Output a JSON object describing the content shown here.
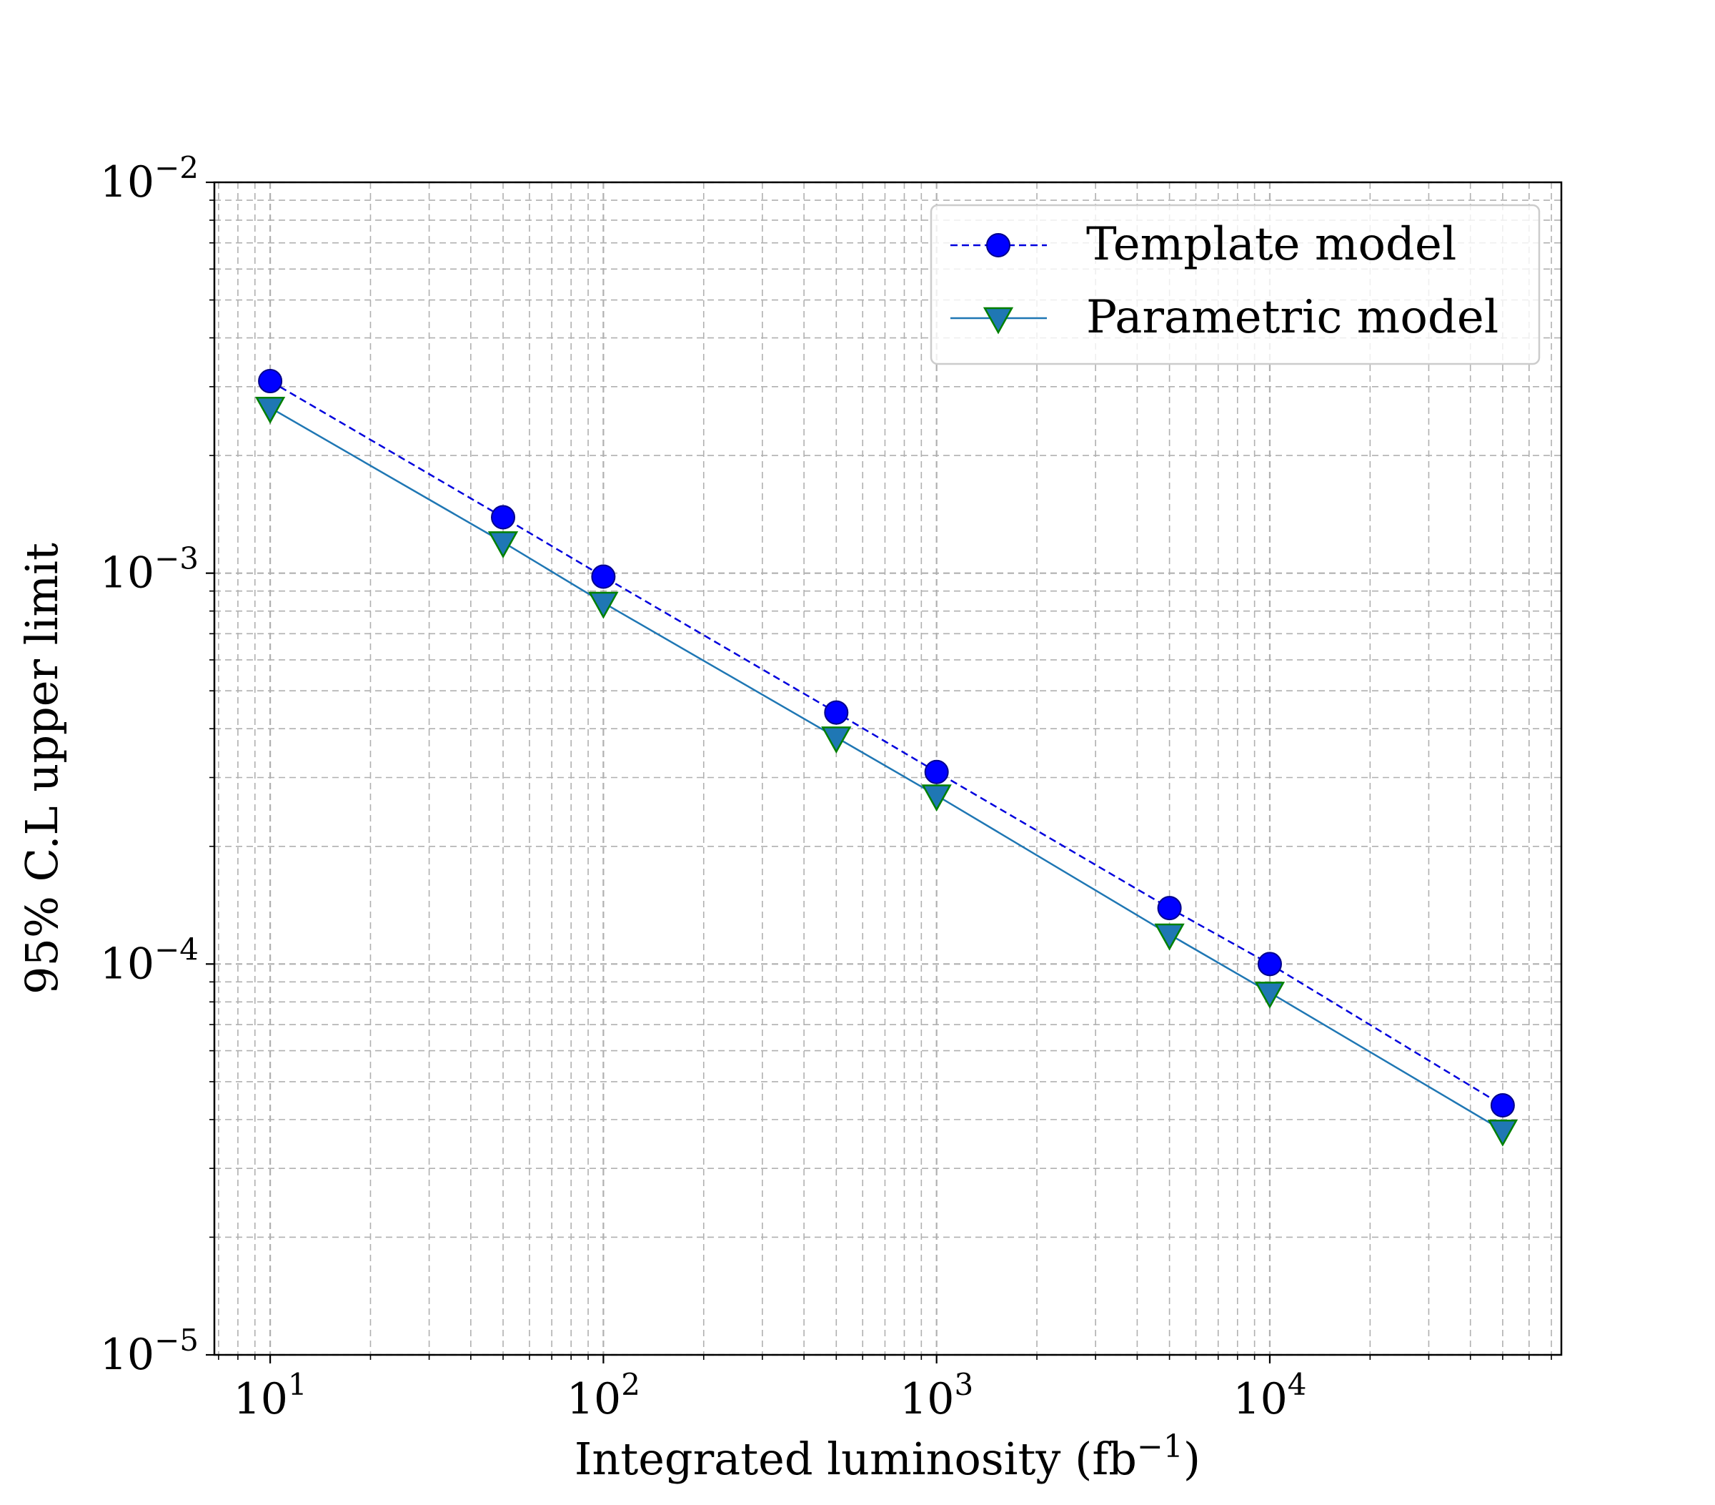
{
  "chart_data": {
    "type": "line",
    "xlabel": "Integrated luminosity (fb",
    "xlabel_sup": "−1",
    "xlabel_suffix": ")",
    "ylabel": "95% C.L upper limit",
    "x_scale": "log",
    "y_scale": "log",
    "xlim": [
      6.8,
      75000
    ],
    "ylim": [
      1e-05,
      0.01
    ],
    "x_ticks": [
      {
        "value": 10,
        "base": "10",
        "exp": "1"
      },
      {
        "value": 100,
        "base": "10",
        "exp": "2"
      },
      {
        "value": 1000,
        "base": "10",
        "exp": "3"
      },
      {
        "value": 10000,
        "base": "10",
        "exp": "4"
      }
    ],
    "y_ticks": [
      {
        "value": 1e-05,
        "base": "10",
        "exp": "−5"
      },
      {
        "value": 0.0001,
        "base": "10",
        "exp": "−4"
      },
      {
        "value": 0.001,
        "base": "10",
        "exp": "−3"
      },
      {
        "value": 0.01,
        "base": "10",
        "exp": "−2"
      }
    ],
    "grid": {
      "major": true,
      "minor": true,
      "style": "dashed",
      "color": "#b0b0b0"
    },
    "legend_position": "top-right",
    "x": [
      10,
      50,
      100,
      500,
      1000,
      5000,
      10000,
      50000
    ],
    "series": [
      {
        "name": "Template model",
        "values": [
          0.0031,
          0.00139,
          0.00098,
          0.00044,
          0.00031,
          0.000139,
          0.0001,
          4.35e-05
        ],
        "line_color": "#0000dd",
        "line_style": "dashed",
        "marker": "circle",
        "marker_fill": "#0000ff",
        "marker_edge": "#00008b"
      },
      {
        "name": "Parametric model",
        "values": [
          0.00265,
          0.0012,
          0.00084,
          0.00038,
          0.00027,
          0.000119,
          8.45e-05,
          3.75e-05
        ],
        "line_color": "#1f77b4",
        "line_style": "solid",
        "marker": "triangle-down",
        "marker_fill": "#1f77b4",
        "marker_edge": "#008000"
      }
    ]
  }
}
